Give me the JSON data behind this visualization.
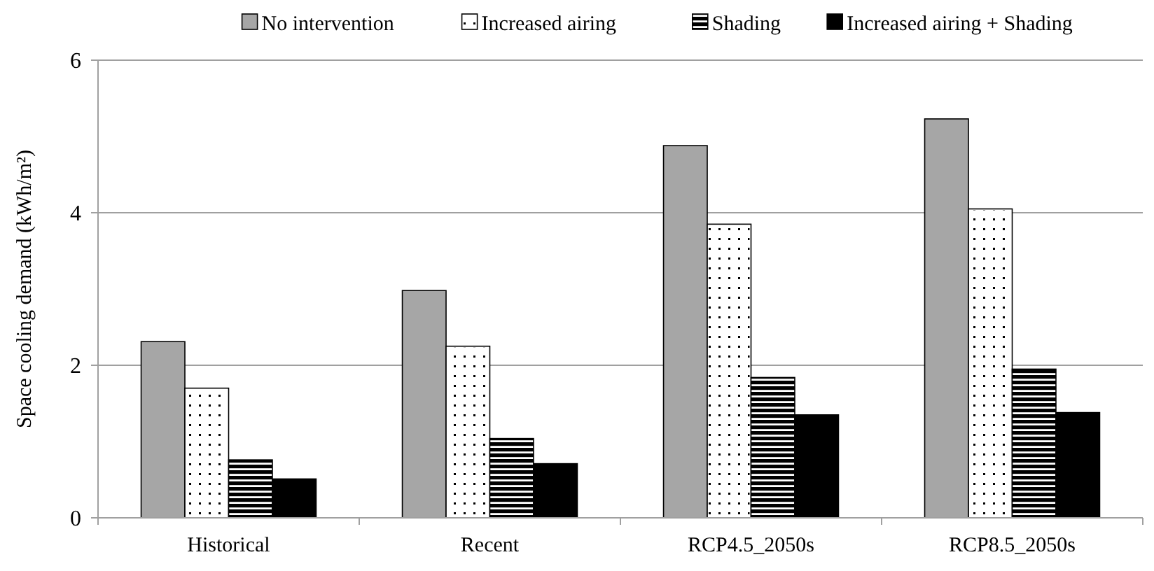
{
  "chart_data": {
    "type": "bar",
    "ylabel": "Space cooling demand (kWh/m²)",
    "categories": [
      "Historical",
      "Recent",
      "RCP4.5_2050s",
      "RCP8.5_2050s"
    ],
    "series": [
      {
        "name": "No intervention",
        "color": "#a6a6a6",
        "values": [
          2.31,
          2.98,
          4.88,
          5.23
        ]
      },
      {
        "name": "Increased airing",
        "color": "#ffffff",
        "values": [
          1.7,
          2.25,
          3.85,
          4.05
        ]
      },
      {
        "name": "Shading",
        "color": "#000000",
        "values": [
          0.76,
          1.04,
          1.84,
          1.95
        ]
      },
      {
        "name": "Increased airing + Shading",
        "color": "#000000",
        "values": [
          0.51,
          0.71,
          1.35,
          1.38
        ]
      }
    ],
    "ylim": [
      0,
      6
    ],
    "yticks": [
      0,
      2,
      4,
      6
    ],
    "grid": "y",
    "legend": "top"
  }
}
